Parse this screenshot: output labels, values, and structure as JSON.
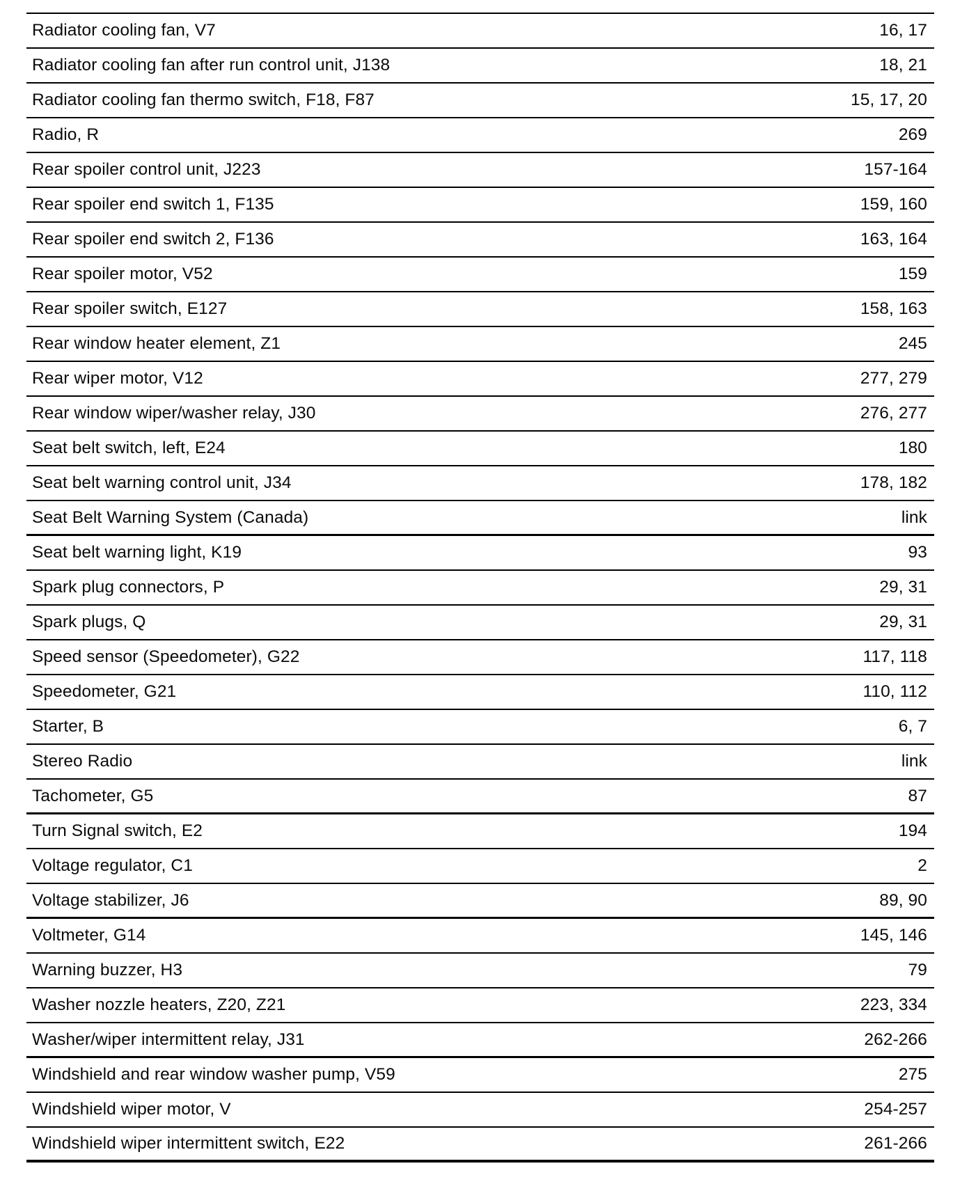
{
  "page": {
    "background_color": "#ffffff",
    "rule_color": "#000000",
    "text_color": "#0b0b0b",
    "link_value": "link"
  },
  "index_table": {
    "rows": [
      {
        "component": "Radiator cooling fan, V7",
        "pages": "16, 17",
        "heavy_rule": false
      },
      {
        "component": "Radiator cooling fan after run control unit, J138",
        "pages": "18, 21",
        "heavy_rule": false
      },
      {
        "component": "Radiator cooling fan thermo switch, F18, F87",
        "pages": "15, 17, 20",
        "heavy_rule": false
      },
      {
        "component": "Radio, R",
        "pages": "269",
        "heavy_rule": false
      },
      {
        "component": "Rear spoiler control unit, J223",
        "pages": "157-164",
        "heavy_rule": false
      },
      {
        "component": "Rear spoiler end switch 1, F135",
        "pages": "159, 160",
        "heavy_rule": false
      },
      {
        "component": "Rear spoiler end switch 2, F136",
        "pages": "163, 164",
        "heavy_rule": false
      },
      {
        "component": "Rear spoiler motor, V52",
        "pages": "159",
        "heavy_rule": false
      },
      {
        "component": "Rear spoiler switch, E127",
        "pages": "158, 163",
        "heavy_rule": false
      },
      {
        "component": "Rear window heater element, Z1",
        "pages": "245",
        "heavy_rule": false
      },
      {
        "component": "Rear wiper motor, V12",
        "pages": "277, 279",
        "heavy_rule": false
      },
      {
        "component": "Rear window wiper/washer relay, J30",
        "pages": "276, 277",
        "heavy_rule": false
      },
      {
        "component": "Seat belt switch, left, E24",
        "pages": "180",
        "heavy_rule": false
      },
      {
        "component": "Seat belt warning control unit, J34",
        "pages": "178, 182",
        "heavy_rule": false
      },
      {
        "component": "Seat Belt Warning System (Canada)",
        "pages": "link",
        "heavy_rule": true
      },
      {
        "component": "Seat belt warning light, K19",
        "pages": "93",
        "heavy_rule": false
      },
      {
        "component": "Spark plug connectors, P",
        "pages": "29, 31",
        "heavy_rule": false
      },
      {
        "component": "Spark plugs, Q",
        "pages": "29, 31",
        "heavy_rule": false
      },
      {
        "component": "Speed sensor (Speedometer), G22",
        "pages": "117, 118",
        "heavy_rule": false
      },
      {
        "component": "Speedometer, G21",
        "pages": "110, 112",
        "heavy_rule": false
      },
      {
        "component": "Starter, B",
        "pages": "6, 7",
        "heavy_rule": false
      },
      {
        "component": "Stereo Radio",
        "pages": "link",
        "heavy_rule": false
      },
      {
        "component": "Tachometer, G5",
        "pages": "87",
        "heavy_rule": true
      },
      {
        "component": "Turn Signal switch, E2",
        "pages": "194",
        "heavy_rule": false
      },
      {
        "component": "Voltage regulator, C1",
        "pages": "2",
        "heavy_rule": false
      },
      {
        "component": "Voltage stabilizer, J6",
        "pages": "89, 90",
        "heavy_rule": true
      },
      {
        "component": "Voltmeter, G14",
        "pages": "145, 146",
        "heavy_rule": false
      },
      {
        "component": "Warning buzzer, H3",
        "pages": "79",
        "heavy_rule": false
      },
      {
        "component": "Washer nozzle heaters, Z20, Z21",
        "pages": "223, 334",
        "heavy_rule": false
      },
      {
        "component": "Washer/wiper intermittent relay, J31",
        "pages": "262-266",
        "heavy_rule": true
      },
      {
        "component": "Windshield and rear window washer pump, V59",
        "pages": "275",
        "heavy_rule": false
      },
      {
        "component": "Windshield wiper motor, V",
        "pages": "254-257",
        "heavy_rule": false
      },
      {
        "component": "Windshield wiper intermittent switch, E22",
        "pages": "261-266",
        "heavy_rule": true
      }
    ]
  }
}
